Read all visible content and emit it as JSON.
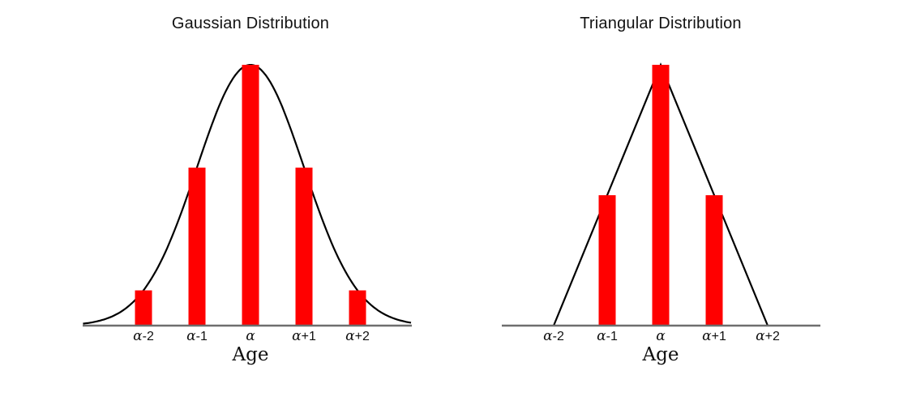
{
  "page": {
    "background_color": "#ffffff",
    "text_color": "#101010"
  },
  "chart_data": [
    {
      "type": "bar",
      "title": "Gaussian Distribution",
      "xlabel": "Age",
      "categories": [
        "α-2",
        "α-1",
        "α",
        "α+1",
        "α+2"
      ],
      "x": [
        -2,
        -1,
        0,
        1,
        2
      ],
      "values": [
        0.135,
        0.606,
        1.0,
        0.606,
        0.135
      ],
      "ylim": [
        0,
        1.05
      ],
      "grid": false,
      "legend": false,
      "bar_color": "#ff0000",
      "axis_color": "#6e6e6e",
      "curve": {
        "shape": "gaussian",
        "mean": 0,
        "sigma": 1,
        "peak": 1.0,
        "x_range": [
          -3.13,
          3.0
        ],
        "color": "#000000"
      }
    },
    {
      "type": "bar",
      "title": "Triangular Distribution",
      "xlabel": "Age",
      "categories": [
        "α-2",
        "α-1",
        "α",
        "α+1",
        "α+2"
      ],
      "x": [
        -2,
        -1,
        0,
        1,
        2
      ],
      "values": [
        0,
        0.5,
        1.0,
        0.5,
        0
      ],
      "ylim": [
        0,
        1.05
      ],
      "grid": false,
      "legend": false,
      "bar_color": "#ff0000",
      "axis_color": "#6e6e6e",
      "curve": {
        "shape": "triangle",
        "base": [
          -2,
          2
        ],
        "peak": 1.0,
        "color": "#000000"
      }
    }
  ]
}
